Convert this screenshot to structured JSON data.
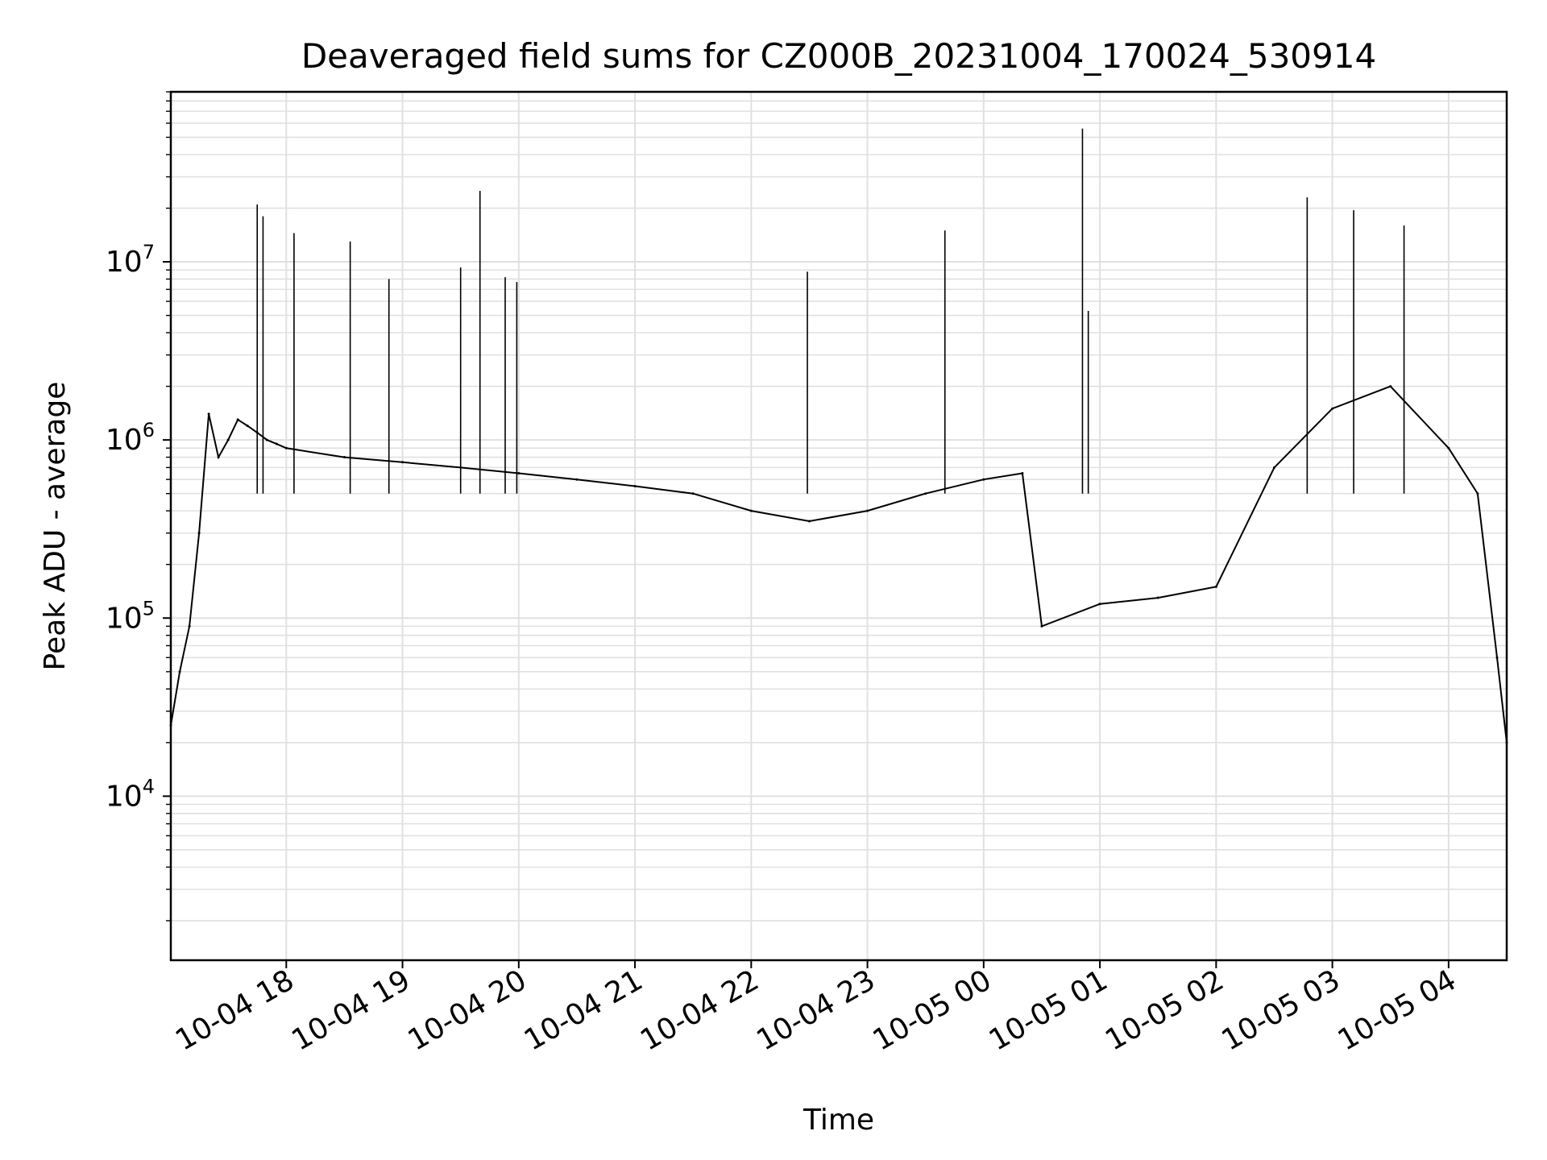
{
  "chart_data": {
    "type": "line",
    "title": "Deaveraged field sums for CZ000B_20231004_170024_530914",
    "xlabel": "Time",
    "ylabel": "Peak ADU - average",
    "yscale": "log",
    "ylim": [
      1200,
      90000000
    ],
    "xlim": [
      "2023-10-04T17:00:24",
      "2023-10-05T04:30:00"
    ],
    "grid": true,
    "line_color": "#000000",
    "grid_color": "#e0e0e0",
    "x_ticks": [
      "10-04 18",
      "10-04 19",
      "10-04 20",
      "10-04 21",
      "10-04 22",
      "10-04 23",
      "10-05 00",
      "10-05 01",
      "10-05 02",
      "10-05 03",
      "10-05 04"
    ],
    "x_tick_times": [
      "2023-10-04T18:00:00",
      "2023-10-04T19:00:00",
      "2023-10-04T20:00:00",
      "2023-10-04T21:00:00",
      "2023-10-04T22:00:00",
      "2023-10-04T23:00:00",
      "2023-10-05T00:00:00",
      "2023-10-05T01:00:00",
      "2023-10-05T02:00:00",
      "2023-10-05T03:00:00",
      "2023-10-05T04:00:00"
    ],
    "y_ticks": [
      {
        "base": "10",
        "exp": "4",
        "value": 10000
      },
      {
        "base": "10",
        "exp": "5",
        "value": 100000
      },
      {
        "base": "10",
        "exp": "6",
        "value": 1000000
      },
      {
        "base": "10",
        "exp": "7",
        "value": 10000000
      }
    ],
    "series": [
      {
        "x": [
          "2023-10-04T17:00:24",
          "2023-10-04T17:05:00",
          "2023-10-04T17:10:00",
          "2023-10-04T17:15:00",
          "2023-10-04T17:20:00",
          "2023-10-04T17:25:00",
          "2023-10-04T17:30:00",
          "2023-10-04T17:35:00",
          "2023-10-04T17:40:00",
          "2023-10-04T17:45:00",
          "2023-10-04T17:50:00",
          "2023-10-04T17:55:00",
          "2023-10-04T18:00:00",
          "2023-10-04T18:30:00",
          "2023-10-04T19:00:00",
          "2023-10-04T19:30:00",
          "2023-10-04T20:00:00",
          "2023-10-04T20:30:00",
          "2023-10-04T21:00:00",
          "2023-10-04T21:30:00",
          "2023-10-04T22:00:00",
          "2023-10-04T22:30:00",
          "2023-10-04T23:00:00",
          "2023-10-04T23:30:00",
          "2023-10-05T00:00:00",
          "2023-10-05T00:20:00",
          "2023-10-05T00:30:00",
          "2023-10-05T01:00:00",
          "2023-10-05T01:30:00",
          "2023-10-05T02:00:00",
          "2023-10-05T02:30:00",
          "2023-10-05T03:00:00",
          "2023-10-05T03:30:00",
          "2023-10-05T04:00:00",
          "2023-10-05T04:15:00",
          "2023-10-05T04:25:00",
          "2023-10-05T04:30:00"
        ],
        "values": [
          25000,
          50000,
          90000,
          300000,
          1400000,
          800000,
          1000000,
          1300000,
          1200000,
          1100000,
          1000000,
          950000,
          900000,
          800000,
          750000,
          700000,
          650000,
          600000,
          550000,
          500000,
          400000,
          350000,
          400000,
          500000,
          600000,
          650000,
          90000,
          120000,
          130000,
          150000,
          700000,
          1500000,
          2000000,
          900000,
          500000,
          60000,
          20000
        ]
      }
    ],
    "spikes": [
      {
        "x": "2023-10-04T17:45:00",
        "value": 21000000
      },
      {
        "x": "2023-10-04T17:48:00",
        "value": 18000000
      },
      {
        "x": "2023-10-04T18:04:00",
        "value": 14500000
      },
      {
        "x": "2023-10-04T18:33:00",
        "value": 13000000
      },
      {
        "x": "2023-10-04T18:53:00",
        "value": 8000000
      },
      {
        "x": "2023-10-04T19:30:00",
        "value": 9300000
      },
      {
        "x": "2023-10-04T19:40:00",
        "value": 25000000
      },
      {
        "x": "2023-10-04T19:53:00",
        "value": 8200000
      },
      {
        "x": "2023-10-04T19:59:00",
        "value": 7700000
      },
      {
        "x": "2023-10-04T22:29:00",
        "value": 8800000
      },
      {
        "x": "2023-10-04T23:40:00",
        "value": 15000000
      },
      {
        "x": "2023-10-05T00:51:00",
        "value": 56000000
      },
      {
        "x": "2023-10-05T00:54:00",
        "value": 5300000
      },
      {
        "x": "2023-10-05T02:47:00",
        "value": 23000000
      },
      {
        "x": "2023-10-05T03:11:00",
        "value": 19500000
      },
      {
        "x": "2023-10-05T03:37:00",
        "value": 16000000
      }
    ]
  }
}
